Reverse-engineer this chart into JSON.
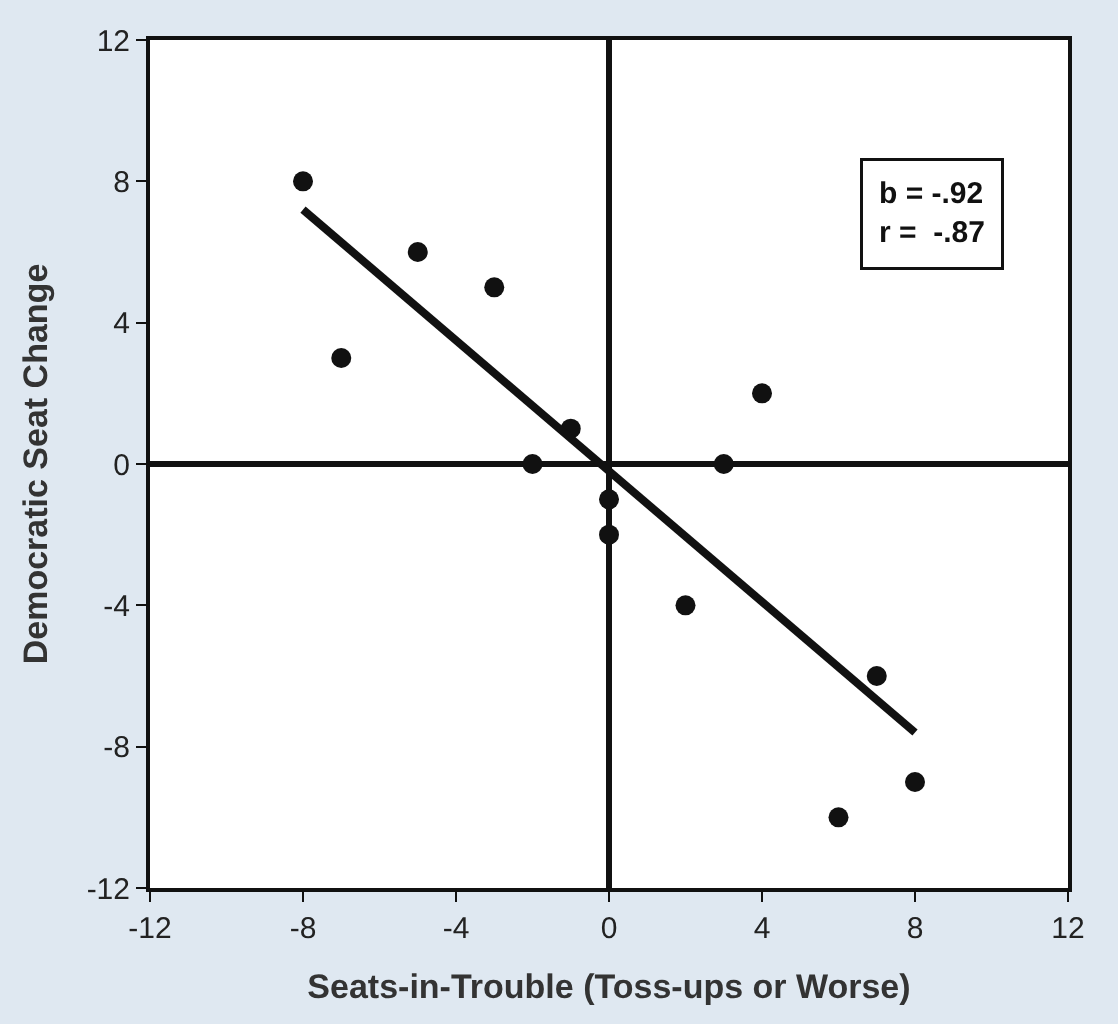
{
  "chart_data": {
    "type": "scatter",
    "xlabel": "Seats-in-Trouble (Toss-ups or Worse)",
    "ylabel": "Democratic Seat Change",
    "xlim": [
      -12,
      12
    ],
    "ylim": [
      -12,
      12
    ],
    "xticks": [
      -12,
      -8,
      -4,
      0,
      4,
      8,
      12
    ],
    "yticks": [
      -12,
      -8,
      -4,
      0,
      4,
      8,
      12
    ],
    "marker": "circle",
    "series": [
      {
        "color": "#111111",
        "x": [
          -8,
          -7,
          -5,
          -3,
          -2,
          -1,
          0,
          0,
          2,
          3,
          4,
          6,
          7,
          8
        ],
        "values": [
          8,
          3,
          6,
          5,
          0,
          1,
          -1,
          -2,
          -4,
          0,
          2,
          -10,
          -6,
          -9
        ]
      },
      {
        "type": "line",
        "color": "#111111",
        "x": [
          -8,
          8
        ],
        "values": [
          7.2,
          -7.6
        ],
        "line_style": "solid",
        "marker": "none"
      }
    ],
    "annotations": [
      "b = -.92",
      "r =  -.87"
    ]
  }
}
